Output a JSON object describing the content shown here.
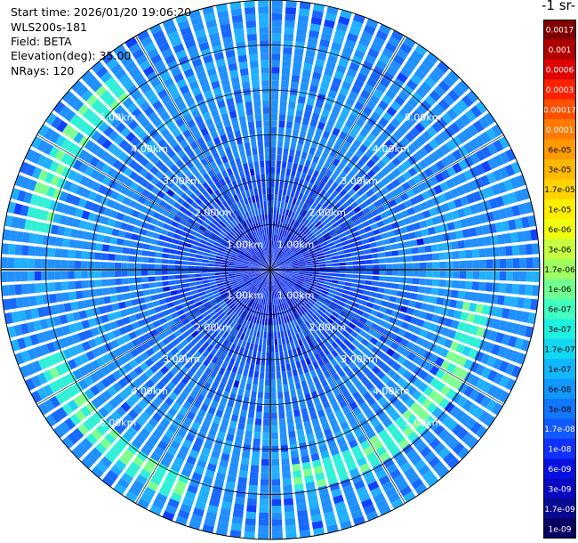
{
  "header": {
    "lines": [
      "Start time: 2026/01/20 19:06:20",
      "WLS200s-181",
      "Field: BETA",
      "Elevation(deg): 35.00",
      "NRays: 120"
    ]
  },
  "colorbar": {
    "title": "-1 sr-",
    "labels": [
      "0.0017",
      "0.001",
      "0.0006",
      "0.0003",
      "0.00017",
      "0.0001",
      "6e-05",
      "3e-05",
      "1.7e-05",
      "1e-05",
      "6e-06",
      "3e-06",
      "1.7e-06",
      "1e-06",
      "6e-07",
      "3e-07",
      "1.7e-07",
      "1e-07",
      "6e-08",
      "3e-08",
      "1.7e-08",
      "1e-08",
      "6e-09",
      "3e-09",
      "1.7e-09",
      "1e-09"
    ],
    "colors": [
      "#800000",
      "#b00000",
      "#e00000",
      "#ff2000",
      "#ff5000",
      "#ff7a00",
      "#ff9a00",
      "#ffb800",
      "#ffd400",
      "#ffee00",
      "#f0ff10",
      "#c8ff40",
      "#a0ff60",
      "#70ff90",
      "#40ffc0",
      "#20f0e0",
      "#10d8f0",
      "#10b8ff",
      "#1098ff",
      "#1078ff",
      "#1058ff",
      "#1030ff",
      "#0810e0",
      "#0808c0",
      "#080890",
      "#080060"
    ]
  },
  "chart_data": {
    "type": "ppi",
    "field": "BETA",
    "elevation_deg": 35.0,
    "n_rays": 120,
    "range_rings_km": [
      1,
      2,
      3,
      4,
      5
    ],
    "range_ring_labels": [
      "1.00km",
      "2.00km",
      "3.00km",
      "4.00km",
      "5.00km"
    ],
    "max_range_km": 6.0,
    "grid": true,
    "features": [
      {
        "description": "enhanced backscatter arc",
        "azimuth_deg": [
          100,
          175
        ],
        "range_km": [
          4.3,
          5.0
        ],
        "level": "1.7e-07"
      },
      {
        "description": "enhanced backscatter arc",
        "azimuth_deg": [
          200,
          250
        ],
        "range_km": [
          5.0,
          5.6
        ],
        "level": "1.7e-07"
      },
      {
        "description": "enhanced backscatter arc",
        "azimuth_deg": [
          280,
          320
        ],
        "range_km": [
          5.0,
          5.6
        ],
        "level": "3e-07"
      }
    ]
  }
}
